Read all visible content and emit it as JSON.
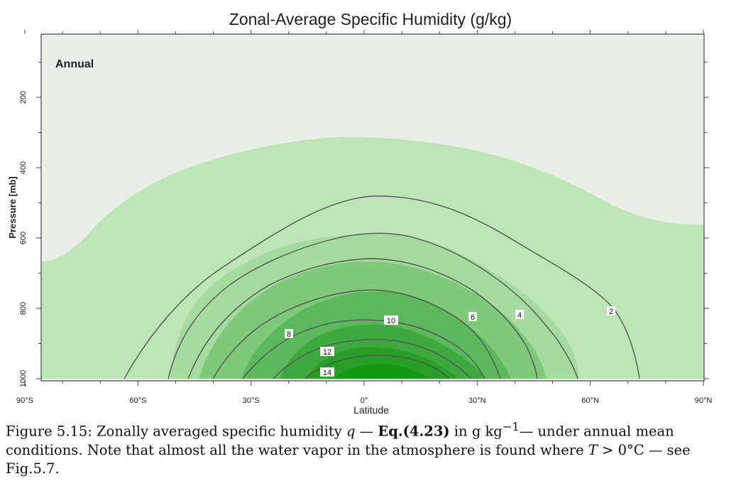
{
  "chart_data": {
    "type": "contour",
    "title": "Zonal-Average Specific Humidity (g/kg)",
    "panel_label": "Annual",
    "xlabel": "Latitude",
    "ylabel": "Pressure [mb]",
    "x_ticks": [
      "90°S",
      "60°S",
      "30°S",
      "0°",
      "30°N",
      "60°N",
      "90°N"
    ],
    "x_tick_values": [
      -90,
      -60,
      -30,
      0,
      30,
      60,
      90
    ],
    "y_ticks": [
      "200",
      "400",
      "600",
      "800",
      "1000"
    ],
    "y_tick_values": [
      200,
      400,
      600,
      800,
      1000
    ],
    "xlim": [
      -90,
      90
    ],
    "ylim": [
      1000,
      0
    ],
    "contour_levels": [
      2,
      4,
      6,
      8,
      10,
      12,
      14
    ],
    "contour_labels": [
      {
        "text": "2",
        "lat": 66,
        "p": 810
      },
      {
        "text": "4",
        "lat": 41,
        "p": 815
      },
      {
        "text": "6",
        "lat": 28,
        "p": 820
      },
      {
        "text": "8",
        "lat": -22,
        "p": 870
      },
      {
        "text": "10",
        "lat": 5,
        "p": 835
      },
      {
        "text": "12",
        "lat": -12,
        "p": 925
      },
      {
        "text": "14",
        "lat": -12,
        "p": 985
      }
    ],
    "fill_colors": [
      "#e9efe7",
      "#bde5b7",
      "#a6dba0",
      "#7fc97a",
      "#5cb85c",
      "#3ea93e",
      "#28a028",
      "#139813"
    ],
    "line_color": "#555555"
  },
  "caption": {
    "figure_label": "Figure 5.15:",
    "text_1": " Zonally averaged specific humidity ",
    "q": "q",
    "dash_1": " — ",
    "eq_ref": "Eq.(4.23)",
    "text_2": " in ",
    "units": "g kg",
    "units_exp": "−1",
    "dash_2": "— under annual mean conditions. Note that almost all the water vapor in the atmosphere is found where ",
    "T": "T",
    "cond": " > 0°C",
    "text_3": " — see Fig.5.7."
  }
}
